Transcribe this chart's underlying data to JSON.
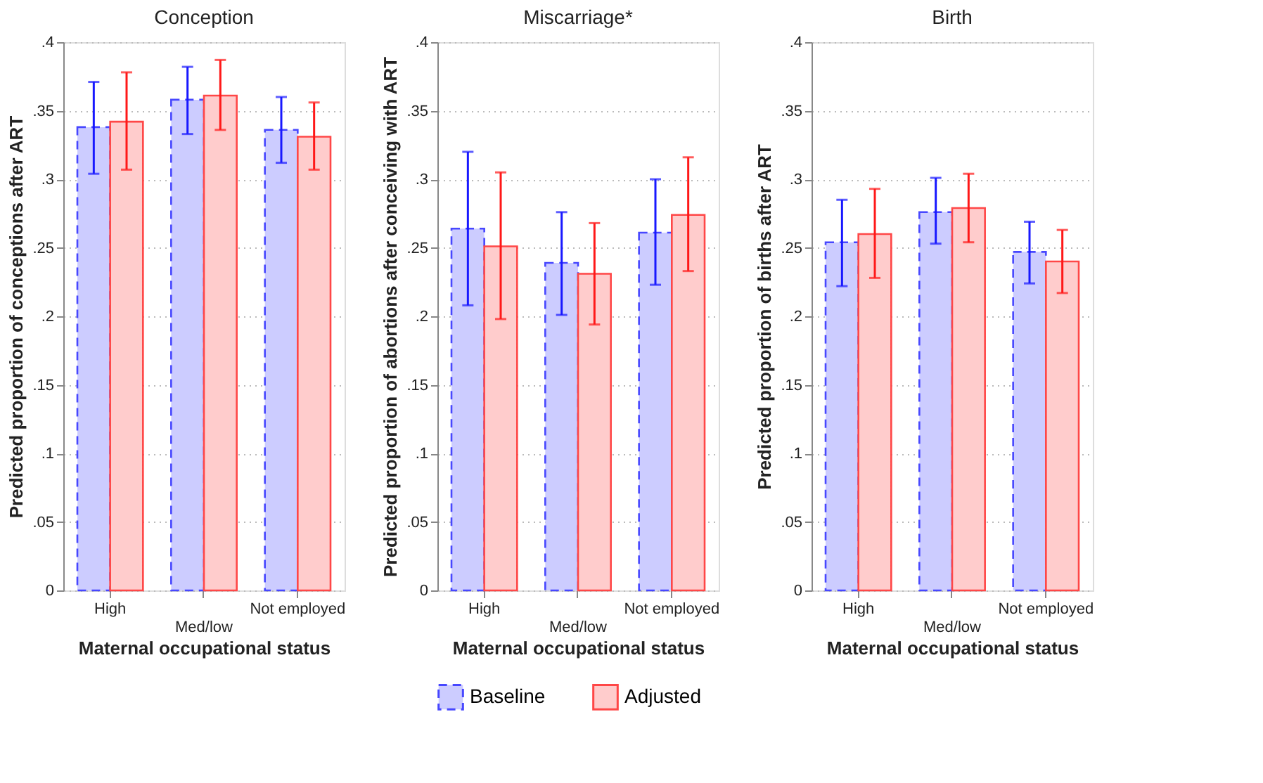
{
  "chart_data": [
    {
      "type": "bar",
      "title": "Conception",
      "xlabel": "Maternal occupational status",
      "ylabel": "Predicted proportion of conceptions after ART",
      "categories": [
        "High",
        "Med/low",
        "Not employed"
      ],
      "ylim": [
        0,
        0.4
      ],
      "yticks": [
        0,
        {
          "value": 0.05,
          "label": ".05"
        },
        {
          "value": 0.1,
          "label": ".1"
        },
        {
          "value": 0.15,
          "label": ".15"
        },
        {
          "value": 0.2,
          "label": ".2"
        },
        {
          "value": 0.25,
          "label": ".25"
        },
        {
          "value": 0.3,
          "label": ".3"
        },
        {
          "value": 0.35,
          "label": ".35"
        },
        {
          "value": 0.4,
          "label": ".4"
        }
      ],
      "grid": "y",
      "legend": false,
      "series": [
        {
          "name": "Baseline",
          "color": "#ccccff",
          "line_style": "dashed",
          "values": [
            0.338,
            0.358,
            0.336
          ],
          "errors": [
            [
              0.304,
              0.371
            ],
            [
              0.333,
              0.382
            ],
            [
              0.312,
              0.36
            ]
          ]
        },
        {
          "name": "Adjusted",
          "color": "#ffcccc",
          "line_style": "solid",
          "values": [
            0.342,
            0.361,
            0.331
          ],
          "errors": [
            [
              0.307,
              0.378
            ],
            [
              0.336,
              0.387
            ],
            [
              0.307,
              0.356
            ]
          ]
        }
      ]
    },
    {
      "type": "bar",
      "title": "Miscarriage*",
      "xlabel": "Maternal occupational status",
      "ylabel": "Predicted proportion of abortions after conceiving with ART",
      "categories": [
        "High",
        "Med/low",
        "Not employed"
      ],
      "ylim": [
        0,
        0.4
      ],
      "yticks": [
        0,
        {
          "value": 0.05,
          "label": ".05"
        },
        {
          "value": 0.1,
          "label": ".1"
        },
        {
          "value": 0.15,
          "label": ".15"
        },
        {
          "value": 0.2,
          "label": ".2"
        },
        {
          "value": 0.25,
          "label": ".25"
        },
        {
          "value": 0.3,
          "label": ".3"
        },
        {
          "value": 0.35,
          "label": ".35"
        },
        {
          "value": 0.4,
          "label": ".4"
        }
      ],
      "grid": "y",
      "legend": "bottom",
      "series": [
        {
          "name": "Baseline",
          "color": "#ccccff",
          "line_style": "dashed",
          "values": [
            0.264,
            0.239,
            0.261
          ],
          "errors": [
            [
              0.208,
              0.32
            ],
            [
              0.201,
              0.276
            ],
            [
              0.223,
              0.3
            ]
          ]
        },
        {
          "name": "Adjusted",
          "color": "#ffcccc",
          "line_style": "solid",
          "values": [
            0.251,
            0.231,
            0.274
          ],
          "errors": [
            [
              0.198,
              0.305
            ],
            [
              0.194,
              0.268
            ],
            [
              0.233,
              0.316
            ]
          ]
        }
      ]
    },
    {
      "type": "bar",
      "title": "Birth",
      "xlabel": "Maternal occupational status",
      "ylabel": "Predicted proportion of births after ART",
      "categories": [
        "High",
        "Med/low",
        "Not employed"
      ],
      "ylim": [
        0,
        0.4
      ],
      "yticks": [
        0,
        {
          "value": 0.05,
          "label": ".05"
        },
        {
          "value": 0.1,
          "label": ".1"
        },
        {
          "value": 0.15,
          "label": ".15"
        },
        {
          "value": 0.2,
          "label": ".2"
        },
        {
          "value": 0.25,
          "label": ".25"
        },
        {
          "value": 0.3,
          "label": ".3"
        },
        {
          "value": 0.35,
          "label": ".35"
        },
        {
          "value": 0.4,
          "label": ".4"
        }
      ],
      "grid": "y",
      "legend": false,
      "series": [
        {
          "name": "Baseline",
          "color": "#ccccff",
          "line_style": "dashed",
          "values": [
            0.254,
            0.276,
            0.247
          ],
          "errors": [
            [
              0.222,
              0.285
            ],
            [
              0.253,
              0.301
            ],
            [
              0.224,
              0.269
            ]
          ]
        },
        {
          "name": "Adjusted",
          "color": "#ffcccc",
          "line_style": "solid",
          "values": [
            0.26,
            0.279,
            0.24
          ],
          "errors": [
            [
              0.228,
              0.293
            ],
            [
              0.254,
              0.304
            ],
            [
              0.217,
              0.263
            ]
          ]
        }
      ]
    }
  ]
}
